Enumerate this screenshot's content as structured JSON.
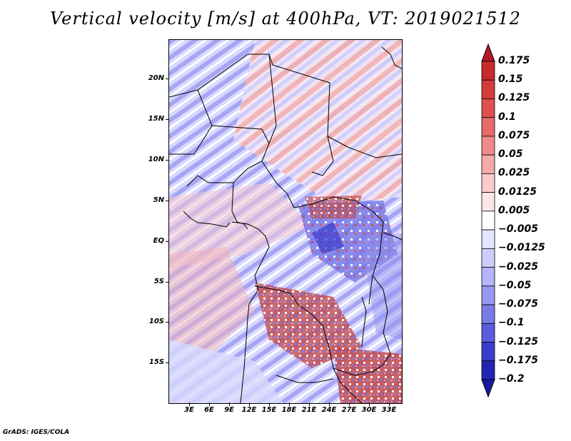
{
  "title": "Vertical velocity [m/s] at 400hPa, VT: 2019021512",
  "footer": "GrADS: IGES/COLA",
  "map": {
    "lat_labels": [
      "20N",
      "15N",
      "10N",
      "5N",
      "EQ",
      "5S",
      "10S",
      "15S"
    ],
    "lon_labels": [
      "3E",
      "6E",
      "9E",
      "12E",
      "15E",
      "18E",
      "21E",
      "24E",
      "27E",
      "30E",
      "33E"
    ]
  },
  "legend": {
    "labels": [
      "0.175",
      "0.15",
      "0.125",
      "0.1",
      "0.075",
      "0.05",
      "0.025",
      "0.0125",
      "0.005",
      "−0.005",
      "−0.0125",
      "−0.025",
      "−0.05",
      "−0.075",
      "−0.1",
      "−0.125",
      "−0.175",
      "−0.2"
    ],
    "colors": [
      "#b2182b",
      "#c62b2b",
      "#d43c3c",
      "#e05050",
      "#e66a6a",
      "#ee8a8a",
      "#f5a9a9",
      "#fbcbcb",
      "#fde5e5",
      "#ffffff",
      "#e5e5ff",
      "#cdcdff",
      "#b3b3ff",
      "#9898f3",
      "#7b7be8",
      "#5c5cdc",
      "#3c3ccc",
      "#2424b3",
      "#1a1aa0"
    ]
  }
}
